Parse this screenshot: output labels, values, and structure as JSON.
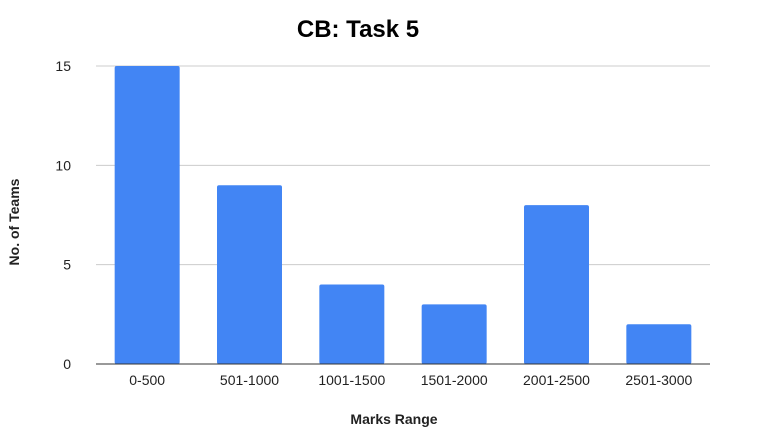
{
  "chart_data": {
    "type": "bar",
    "title": "CB: Task 5",
    "xlabel": "Marks Range",
    "ylabel": "No. of Teams",
    "categories": [
      "0-500",
      "501-1000",
      "1001-1500",
      "1501-2000",
      "2001-2500",
      "2501-3000"
    ],
    "values": [
      15,
      9,
      4,
      3,
      8,
      2
    ],
    "ylim": [
      0,
      15
    ],
    "yticks": [
      "0",
      "5",
      "10",
      "15"
    ],
    "grid": true,
    "legend": "none",
    "bar_color": "#4285f4"
  }
}
